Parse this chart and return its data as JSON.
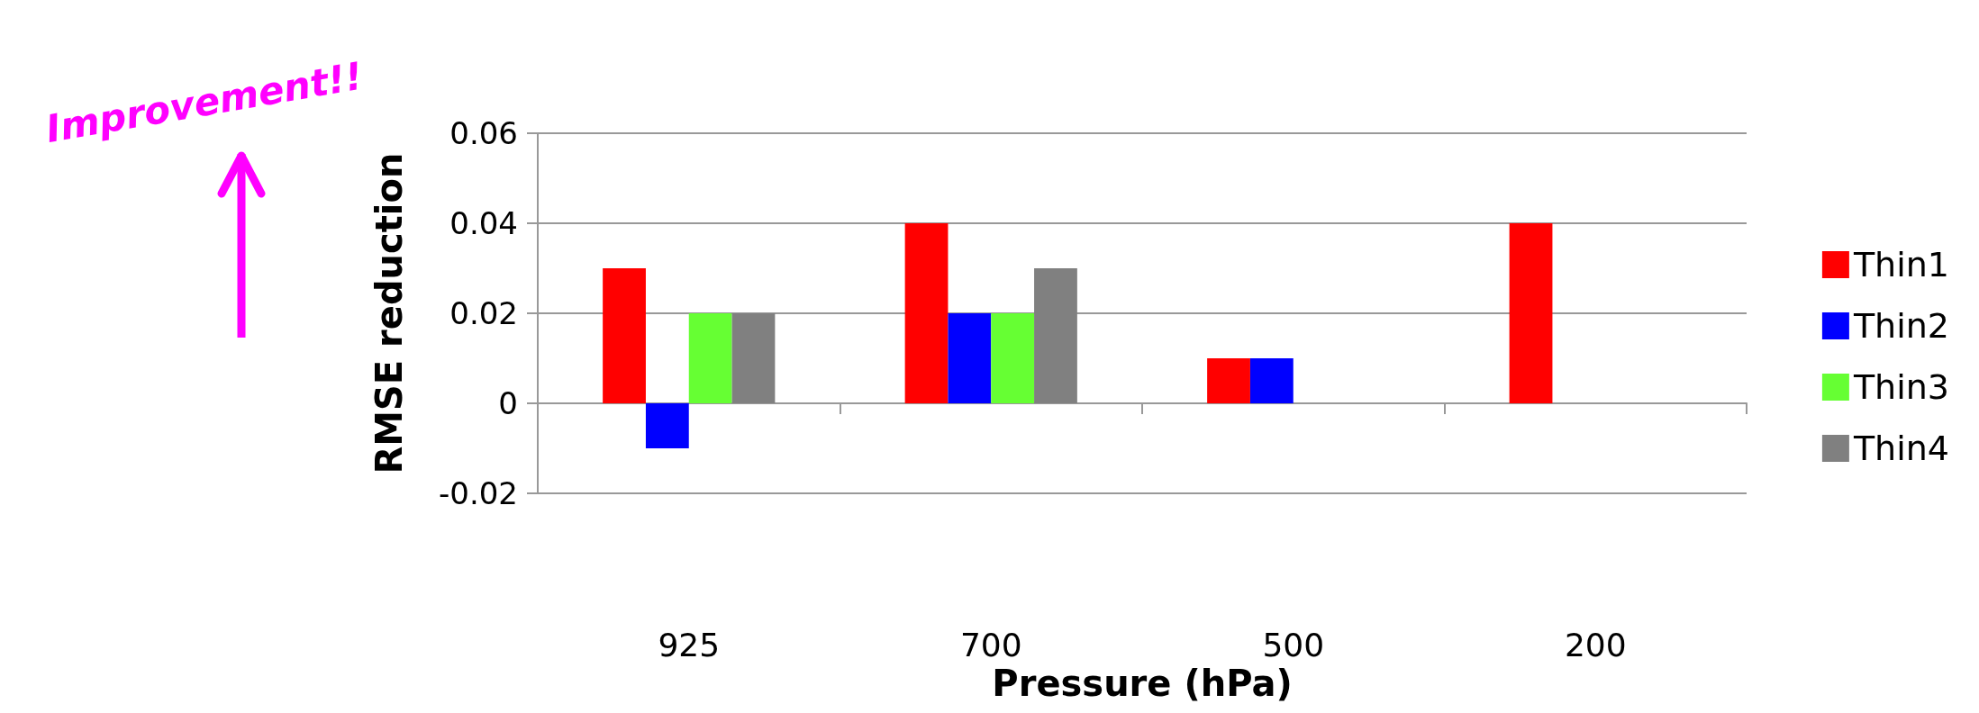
{
  "chart_data": {
    "type": "bar",
    "xlabel": "Pressure (hPa)",
    "ylabel": "RMSE reduction",
    "categories": [
      "925",
      "700",
      "500",
      "200"
    ],
    "series": [
      {
        "name": "Thin1",
        "color": "#ff0000",
        "values": [
          0.03,
          0.04,
          0.01,
          0.04
        ]
      },
      {
        "name": "Thin2",
        "color": "#0000ff",
        "values": [
          -0.01,
          0.02,
          0.01,
          0
        ]
      },
      {
        "name": "Thin3",
        "color": "#66ff33",
        "values": [
          0.02,
          0.02,
          0,
          0
        ]
      },
      {
        "name": "Thin4",
        "color": "#808080",
        "values": [
          0.02,
          0.03,
          0,
          0
        ]
      }
    ],
    "ylim": [
      -0.02,
      0.06
    ],
    "yticks": [
      -0.02,
      0,
      0.02,
      0.04,
      0.06
    ],
    "grid": "y",
    "legend": "right",
    "annotations": [
      "Improvement!!"
    ]
  }
}
